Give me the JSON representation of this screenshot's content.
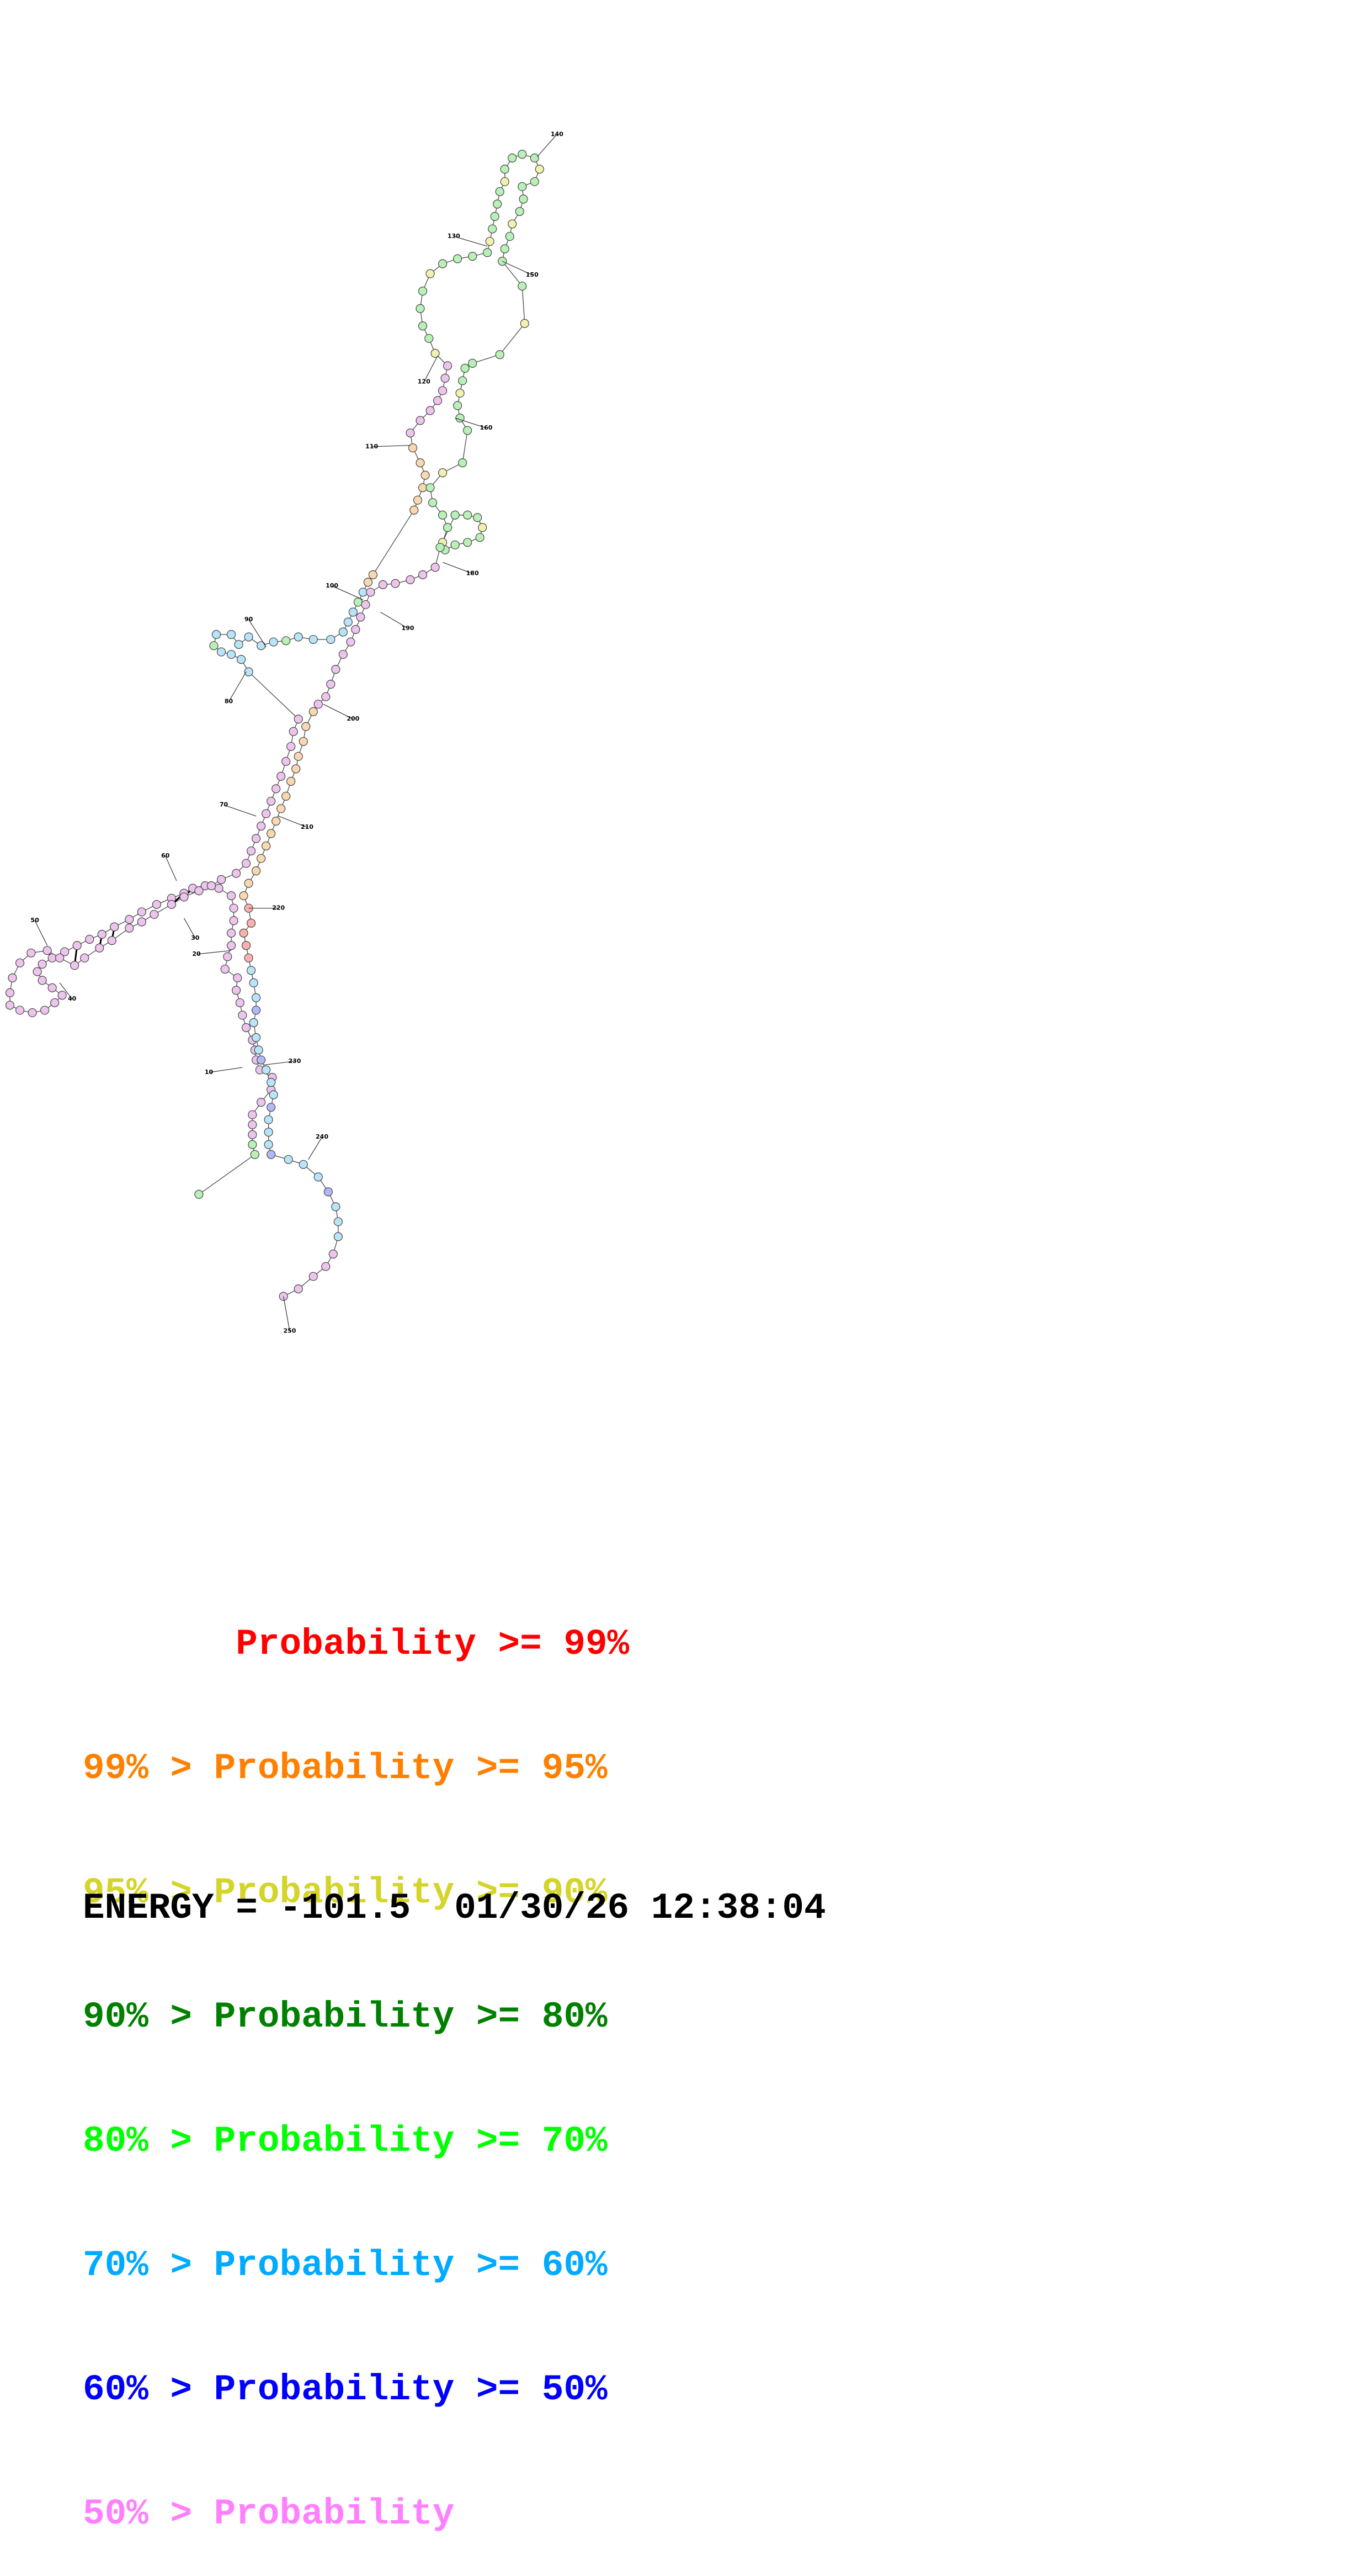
{
  "legend": [
    {
      "text": "       Probability >= 99%",
      "color": "#ff0000"
    },
    {
      "text": "99% > Probability >= 95%",
      "color": "#ff8000"
    },
    {
      "text": "95% > Probability >= 90%",
      "color": "#d4d42a"
    },
    {
      "text": "90% > Probability >= 80%",
      "color": "#008000"
    },
    {
      "text": "80% > Probability >= 70%",
      "color": "#00ff00"
    },
    {
      "text": "70% > Probability >= 60%",
      "color": "#00aaff"
    },
    {
      "text": "60% > Probability >= 50%",
      "color": "#0000ff"
    },
    {
      "text": "50% > Probability",
      "color": "#ff80ff"
    }
  ],
  "footer": {
    "energy_text": "ENERGY = -101.5  01/30/26 12:38:04"
  },
  "position_labels": [
    "10",
    "20",
    "30",
    "40",
    "50",
    "60",
    "70",
    "80",
    "90",
    "100",
    "110",
    "120",
    "130",
    "140",
    "150",
    "160",
    "180",
    "190",
    "200",
    "210",
    "220",
    "230",
    "240",
    "250"
  ],
  "nucleotide_fill_colors": {
    "pink": "#ecc4ec",
    "green": "#b8f0b8",
    "lightblue": "#b8e4f8",
    "orange": "#f8d8b0",
    "yellow": "#f0f0b0",
    "blue": "#b0b8f8",
    "red": "#f8b0b0"
  }
}
